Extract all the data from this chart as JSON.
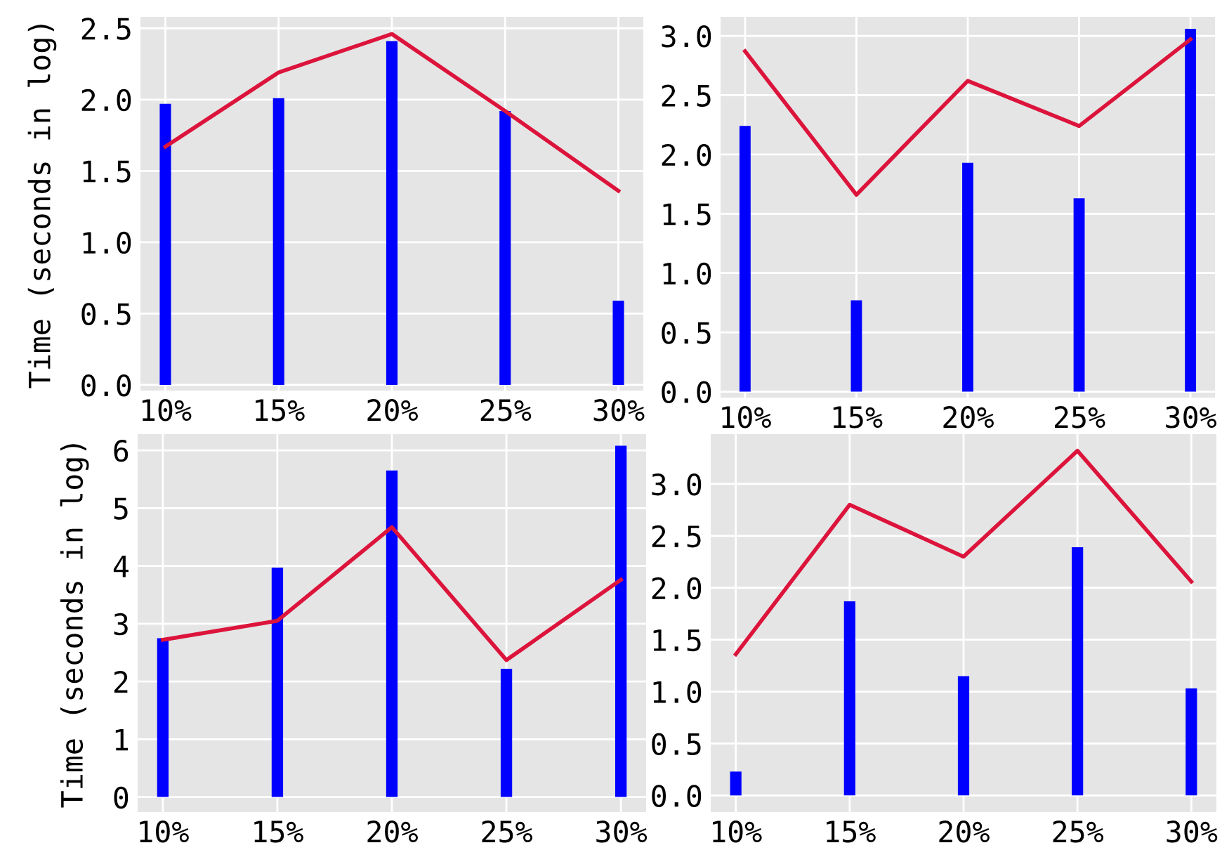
{
  "chart_data": [
    {
      "type": "bar",
      "ylabel": "Time (seconds in log)",
      "categories": [
        "10%",
        "15%",
        "20%",
        "25%",
        "30%"
      ],
      "series": [
        {
          "color": "#0000ff",
          "values": [
            1.97,
            2.01,
            2.41,
            1.92,
            0.59
          ]
        },
        {
          "type": "line",
          "color": "#dc143c",
          "values": [
            1.67,
            2.19,
            2.46,
            1.92,
            1.36
          ]
        }
      ],
      "ylim": [
        -0.04,
        2.58
      ],
      "yticks": [
        {
          "value": 0,
          "label": "0.0"
        },
        0.5,
        {
          "value": 1,
          "label": "1.0"
        },
        1.5,
        {
          "value": 2,
          "label": "2.0"
        },
        2.5
      ],
      "grid": true,
      "legend": false
    },
    {
      "type": "bar",
      "categories": [
        "10%",
        "15%",
        "20%",
        "25%",
        "30%"
      ],
      "series": [
        {
          "color": "#0000ff",
          "values": [
            2.24,
            0.77,
            1.93,
            1.63,
            3.06
          ]
        },
        {
          "type": "line",
          "color": "#dc143c",
          "values": [
            2.87,
            1.66,
            2.62,
            2.24,
            2.97
          ]
        }
      ],
      "ylim": [
        -0.05,
        3.16
      ],
      "yticks": [
        {
          "value": 0,
          "label": "0.0"
        },
        0.5,
        {
          "value": 1,
          "label": "1.0"
        },
        1.5,
        {
          "value": 2,
          "label": "2.0"
        },
        2.5,
        {
          "value": 3,
          "label": "3.0"
        }
      ],
      "grid": true,
      "legend": false
    },
    {
      "type": "bar",
      "ylabel": "Time (seconds in log)",
      "categories": [
        "10%",
        "15%",
        "20%",
        "25%",
        "30%"
      ],
      "series": [
        {
          "color": "#0000ff",
          "values": [
            2.75,
            3.97,
            5.65,
            2.22,
            6.08
          ]
        },
        {
          "type": "line",
          "color": "#dc143c",
          "values": [
            2.72,
            3.05,
            4.67,
            2.37,
            3.76
          ]
        }
      ],
      "ylim": [
        -0.26,
        6.28
      ],
      "yticks": [
        0,
        1,
        2,
        3,
        4,
        5,
        6
      ],
      "grid": true,
      "legend": false
    },
    {
      "type": "bar",
      "categories": [
        "10%",
        "15%",
        "20%",
        "25%",
        "30%"
      ],
      "series": [
        {
          "color": "#0000ff",
          "values": [
            0.23,
            1.87,
            1.15,
            2.39,
            1.03
          ]
        },
        {
          "type": "line",
          "color": "#dc143c",
          "values": [
            1.36,
            2.8,
            2.3,
            3.32,
            2.06
          ]
        }
      ],
      "ylim": [
        -0.16,
        3.48
      ],
      "yticks": [
        {
          "value": 0,
          "label": "0.0"
        },
        0.5,
        {
          "value": 1,
          "label": "1.0"
        },
        1.5,
        {
          "value": 2,
          "label": "2.0"
        },
        2.5,
        {
          "value": 3,
          "label": "3.0"
        }
      ],
      "grid": true,
      "legend": false
    }
  ]
}
